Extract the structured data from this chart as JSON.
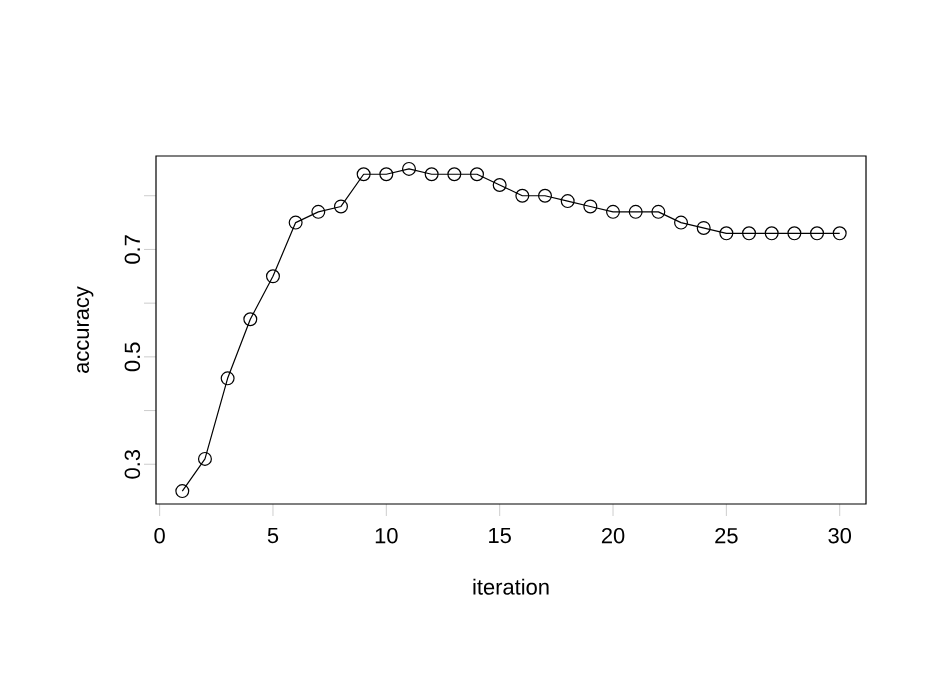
{
  "chart_data": {
    "type": "line",
    "xlabel": "iteration",
    "ylabel": "accuracy",
    "x": [
      1,
      2,
      3,
      4,
      5,
      6,
      7,
      8,
      9,
      10,
      11,
      12,
      13,
      14,
      15,
      16,
      17,
      18,
      19,
      20,
      21,
      22,
      23,
      24,
      25,
      26,
      27,
      28,
      29,
      30
    ],
    "values": [
      0.25,
      0.31,
      0.46,
      0.57,
      0.65,
      0.75,
      0.77,
      0.78,
      0.84,
      0.84,
      0.85,
      0.84,
      0.84,
      0.84,
      0.82,
      0.8,
      0.8,
      0.79,
      0.78,
      0.77,
      0.77,
      0.77,
      0.75,
      0.74,
      0.73,
      0.73,
      0.73,
      0.73,
      0.73,
      0.73
    ],
    "color": "#000000",
    "marker": "circle",
    "line_style": "solid",
    "xlim": [
      -0.16,
      31.16
    ],
    "xticks": [
      0,
      5,
      10,
      15,
      20,
      25,
      30
    ],
    "ylim": [
      0.226,
      0.874
    ],
    "yticks": [
      0.3,
      {
        "value": 0.4,
        "label": null
      },
      0.5,
      {
        "value": 0.6,
        "label": null
      },
      0.7,
      {
        "value": 0.8,
        "label": null
      }
    ]
  }
}
